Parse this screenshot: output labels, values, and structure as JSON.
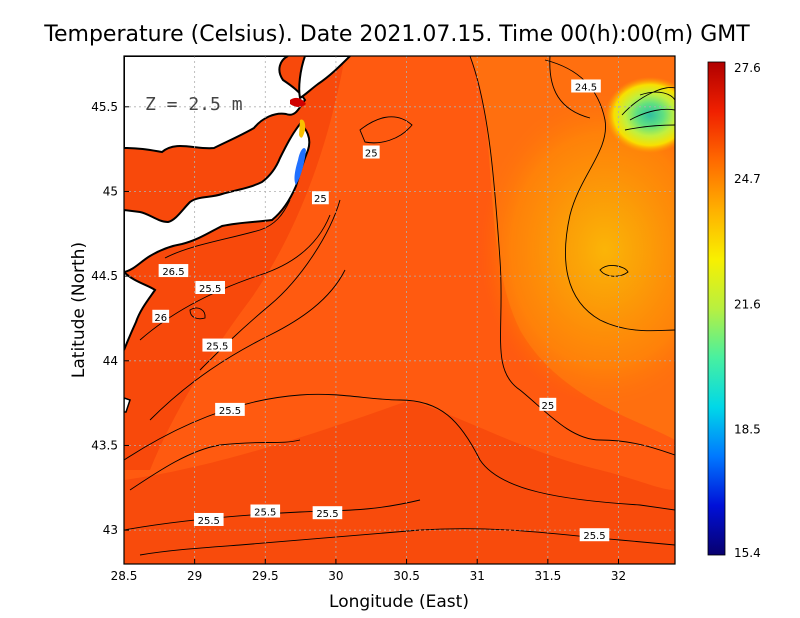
{
  "title": "Temperature (Celsius). Date 2021.07.15. Time 00(h):00(m)  GMT",
  "depth_label": "Z  =  2.5  m",
  "x_axis": {
    "label": "Longitude (East)",
    "range": [
      28.5,
      32.4
    ],
    "ticks": [
      28.5,
      29,
      29.5,
      30,
      30.5,
      31,
      31.5,
      32
    ],
    "tick_labels": [
      "28.5",
      "29",
      "29.5",
      "30",
      "30.5",
      "31",
      "31.5",
      "32"
    ]
  },
  "y_axis": {
    "label": "Latitude (North)",
    "range": [
      42.8,
      45.8
    ],
    "ticks": [
      43,
      43.5,
      44,
      44.5,
      45,
      45.5
    ],
    "tick_labels": [
      "43",
      "43.5",
      "44",
      "44.5",
      "45",
      "45.5"
    ]
  },
  "grid": "dotted",
  "colorbar": {
    "range": [
      15.4,
      27.6
    ],
    "tick_values": [
      27.6,
      24.7,
      21.6,
      18.5,
      15.4
    ],
    "tick_labels": [
      "27.6",
      "24.7",
      "21.6",
      "18.5",
      "15.4"
    ],
    "colormap": [
      "#08006e",
      "#0010d8",
      "#0078ff",
      "#00d8e8",
      "#48f0a0",
      "#b8f040",
      "#f8f000",
      "#ffb000",
      "#ff6a00",
      "#f02000",
      "#b00000"
    ]
  },
  "contour_labels": [
    {
      "text": "24.5",
      "lon": 31.77,
      "lat": 45.62
    },
    {
      "text": "25",
      "lon": 30.25,
      "lat": 45.23
    },
    {
      "text": "25",
      "lon": 29.89,
      "lat": 44.96
    },
    {
      "text": "26.5",
      "lon": 28.85,
      "lat": 44.53
    },
    {
      "text": "25.5",
      "lon": 29.11,
      "lat": 44.43
    },
    {
      "text": "26",
      "lon": 28.76,
      "lat": 44.26
    },
    {
      "text": "25.5",
      "lon": 29.16,
      "lat": 44.09
    },
    {
      "text": "25.5",
      "lon": 29.25,
      "lat": 43.71
    },
    {
      "text": "25",
      "lon": 31.5,
      "lat": 43.74
    },
    {
      "text": "25.5",
      "lon": 29.1,
      "lat": 43.06
    },
    {
      "text": "25.5",
      "lon": 29.5,
      "lat": 43.11
    },
    {
      "text": "25.5",
      "lon": 29.94,
      "lat": 43.1
    },
    {
      "text": "25.5",
      "lon": 31.83,
      "lat": 42.97
    }
  ],
  "land_color": "#ffffff",
  "coast_color": "#000000"
}
